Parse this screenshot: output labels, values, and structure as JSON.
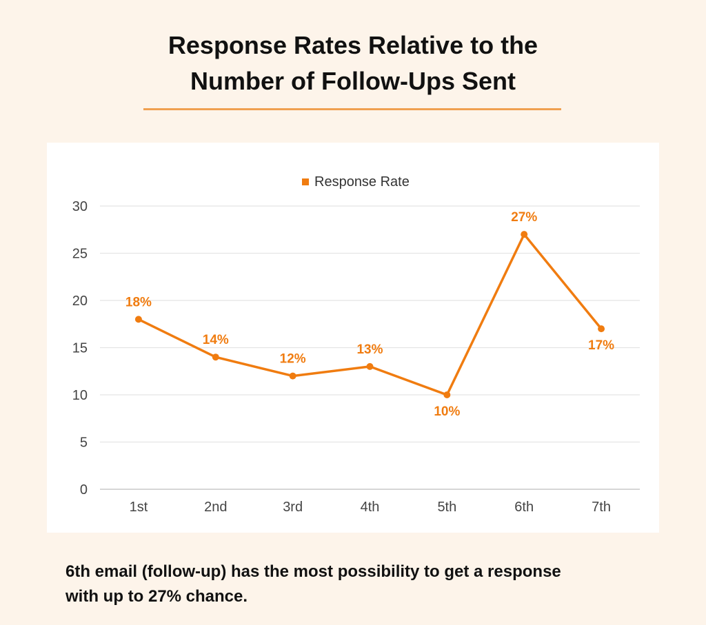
{
  "page": {
    "title_line1": "Response Rates Relative to the",
    "title_line2": "Number of Follow-Ups Sent",
    "caption_line1": "6th email (follow-up) has the most possibility to get a response",
    "caption_line2": "with up to 27% chance."
  },
  "colors": {
    "accent": "#f07c10",
    "rule": "#f0a050",
    "grid": "#e4e4e4",
    "axis_text": "#444444"
  },
  "chart_data": {
    "type": "line",
    "title": "",
    "xlabel": "",
    "ylabel": "",
    "categories": [
      "1st",
      "2nd",
      "3rd",
      "4th",
      "5th",
      "6th",
      "7th"
    ],
    "series": [
      {
        "name": "Response Rate",
        "values": [
          18,
          14,
          12,
          13,
          10,
          27,
          17
        ],
        "labels": [
          "18%",
          "14%",
          "12%",
          "13%",
          "10%",
          "27%",
          "17%"
        ],
        "label_position": [
          "above",
          "above",
          "above",
          "above",
          "below",
          "above",
          "below"
        ]
      }
    ],
    "ylim": [
      0,
      30
    ],
    "yticks": [
      0,
      5,
      10,
      15,
      20,
      25,
      30
    ],
    "grid": true,
    "legend": "top-center"
  }
}
